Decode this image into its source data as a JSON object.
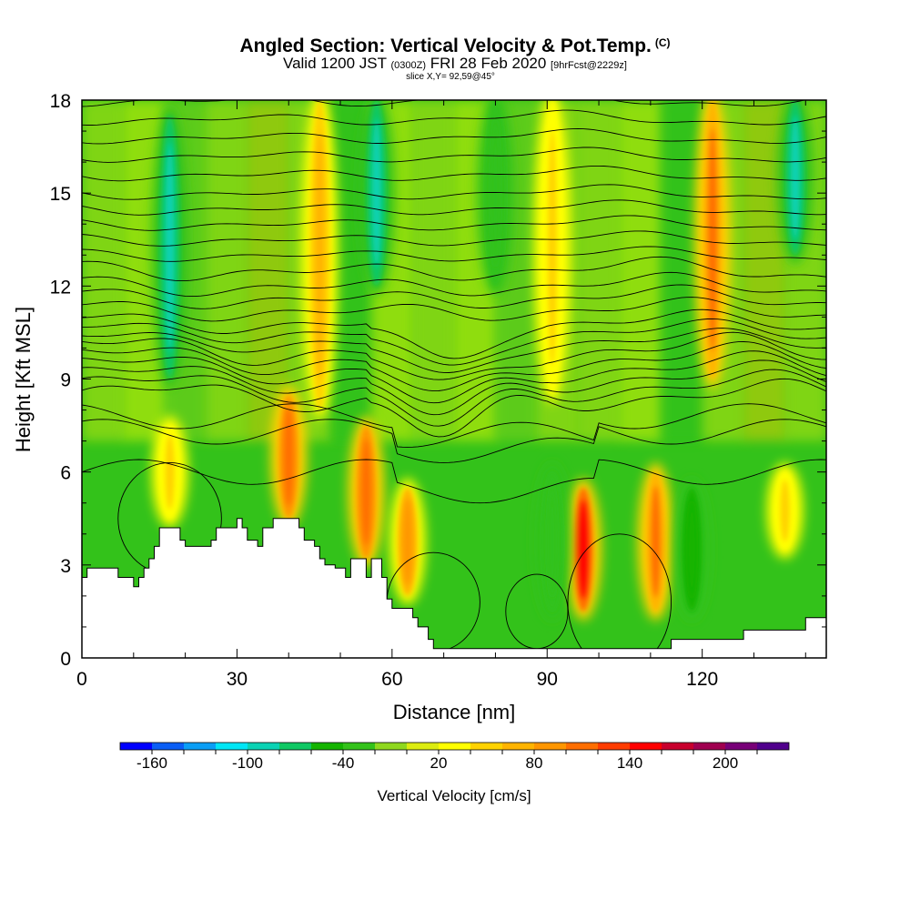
{
  "title": {
    "main": "Angled Section: Vertical Velocity & Pot.Temp.",
    "main_suffix": "(C)",
    "valid_prefix": "Valid 1200 JST",
    "valid_utc": "(0300Z)",
    "valid_date": "FRI 28 Feb 2020",
    "forecast": "[9hrFcst@2229z]",
    "slice": "slice X,Y= 92,59@45°"
  },
  "chart_data": {
    "type": "heatmap",
    "xlabel": "Distance [nm]",
    "ylabel": "Height [Kft MSL]",
    "xlim": [
      0,
      144
    ],
    "ylim": [
      0,
      18
    ],
    "x_ticks": [
      "0",
      "30",
      "60",
      "90",
      "120"
    ],
    "x_tick_values": [
      0,
      30,
      60,
      90,
      120
    ],
    "y_ticks": [
      "0",
      "3",
      "6",
      "9",
      "12",
      "15",
      "18"
    ],
    "y_tick_values": [
      0,
      3,
      6,
      9,
      12,
      15,
      18
    ],
    "field": "Vertical Velocity",
    "background_color": "#33c21a",
    "updraft_columns": [
      {
        "x": 17,
        "y_range": [
          4.5,
          7.5
        ],
        "value": 50
      },
      {
        "x": 40,
        "y_range": [
          4.5,
          8.5
        ],
        "value": 110
      },
      {
        "x": 55,
        "y_range": [
          3.2,
          7.5
        ],
        "value": 110
      },
      {
        "x": 63,
        "y_range": [
          2.0,
          5.5
        ],
        "value": 80
      },
      {
        "x": 97,
        "y_range": [
          1.5,
          5.5
        ],
        "value": 140
      },
      {
        "x": 111,
        "y_range": [
          1.5,
          6.0
        ],
        "value": 100
      },
      {
        "x": 136,
        "y_range": [
          3.5,
          6.0
        ],
        "value": 40
      },
      {
        "x": 46,
        "y_range": [
          8.0,
          18.0
        ],
        "value": 60
      },
      {
        "x": 91,
        "y_range": [
          8.5,
          18.0
        ],
        "value": 50
      },
      {
        "x": 122,
        "y_range": [
          9.0,
          18.0
        ],
        "value": 100
      }
    ],
    "downdraft_columns": [
      {
        "x": 17,
        "y_range": [
          9.0,
          17.5
        ],
        "value": -100
      },
      {
        "x": 57,
        "y_range": [
          12.0,
          18.0
        ],
        "value": -100
      },
      {
        "x": 138,
        "y_range": [
          13.0,
          18.0
        ],
        "value": -90
      },
      {
        "x": 80,
        "y_range": [
          12.0,
          18.0
        ],
        "value": -40
      },
      {
        "x": 118,
        "y_range": [
          1.5,
          5.5
        ],
        "value": -60
      },
      {
        "x": 91,
        "y_range": [
          1.5,
          6.0
        ],
        "value": -40
      }
    ],
    "terrain_height_kft": [
      [
        0,
        2.6
      ],
      [
        1,
        2.9
      ],
      [
        6,
        2.9
      ],
      [
        7,
        2.6
      ],
      [
        9,
        2.6
      ],
      [
        10,
        2.3
      ],
      [
        11,
        2.6
      ],
      [
        12,
        2.9
      ],
      [
        13,
        3.2
      ],
      [
        14,
        3.6
      ],
      [
        15,
        4.2
      ],
      [
        18,
        4.2
      ],
      [
        19,
        3.8
      ],
      [
        20,
        3.6
      ],
      [
        24,
        3.6
      ],
      [
        25,
        3.8
      ],
      [
        26,
        4.2
      ],
      [
        29,
        4.2
      ],
      [
        30,
        4.5
      ],
      [
        31,
        4.2
      ],
      [
        32,
        3.8
      ],
      [
        34,
        3.6
      ],
      [
        35,
        4.2
      ],
      [
        37,
        4.5
      ],
      [
        41,
        4.5
      ],
      [
        42,
        4.2
      ],
      [
        43,
        3.8
      ],
      [
        45,
        3.6
      ],
      [
        46,
        3.2
      ],
      [
        47,
        3.0
      ],
      [
        48,
        3.0
      ],
      [
        49,
        2.9
      ],
      [
        50,
        2.9
      ],
      [
        51,
        2.6
      ],
      [
        52,
        3.2
      ],
      [
        54,
        3.2
      ],
      [
        55,
        2.6
      ],
      [
        56,
        3.2
      ],
      [
        57,
        3.2
      ],
      [
        58,
        2.6
      ],
      [
        59,
        1.9
      ],
      [
        60,
        1.6
      ],
      [
        63,
        1.6
      ],
      [
        64,
        1.3
      ],
      [
        65,
        1.0
      ],
      [
        67,
        0.6
      ],
      [
        68,
        0.3
      ],
      [
        113,
        0.3
      ],
      [
        114,
        0.6
      ],
      [
        127,
        0.6
      ],
      [
        128,
        0.9
      ],
      [
        139,
        0.9
      ],
      [
        140,
        1.3
      ],
      [
        144,
        1.3
      ]
    ],
    "theta_contour_base_kft": [
      8.4,
      8.7,
      9.0,
      9.3,
      9.6,
      9.9,
      10.2,
      10.5,
      10.8,
      11.2,
      11.6,
      12.0,
      12.5,
      13.0,
      13.5,
      14.0,
      14.5,
      15.0,
      15.6,
      16.2,
      16.8,
      17.4,
      18.0
    ],
    "lower_contour_base_kft": [
      6.0,
      7.3,
      7.8
    ]
  },
  "colorbar": {
    "title": "Vertical Velocity [cm/s]",
    "labels": [
      "-160",
      "-100",
      "-40",
      "20",
      "80",
      "140",
      "200"
    ],
    "label_values": [
      -160,
      -100,
      -40,
      20,
      80,
      140,
      200
    ],
    "min": -180,
    "max": 240,
    "step": 20,
    "colors": [
      "#0000ff",
      "#0a5ef5",
      "#0a9ef5",
      "#00e6f5",
      "#0ad2b4",
      "#0fc864",
      "#14b400",
      "#33c21a",
      "#8fd81e",
      "#dcec10",
      "#ffff00",
      "#ffd200",
      "#ffb400",
      "#ff9600",
      "#ff6e00",
      "#ff3c00",
      "#ff0000",
      "#c8002d",
      "#a00050",
      "#780078",
      "#50008c"
    ]
  }
}
